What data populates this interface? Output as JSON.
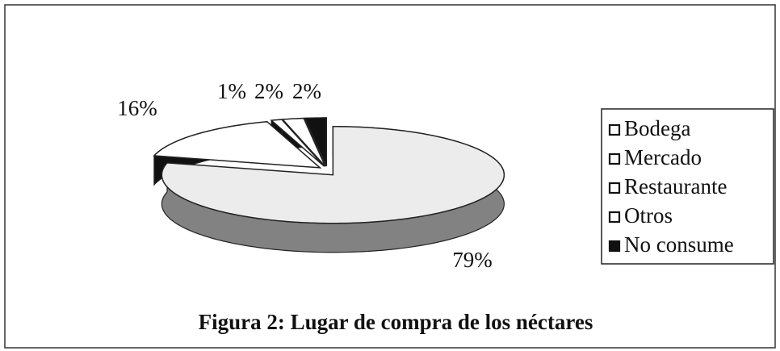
{
  "chart_data": {
    "type": "pie",
    "title": "Figura 2: Lugar de compra de los néctares",
    "categories": [
      "Bodega",
      "Mercado",
      "Restaurante",
      "Otros",
      "No consume"
    ],
    "values": [
      79,
      16,
      1,
      2,
      2
    ],
    "value_labels": [
      "79%",
      "16%",
      "1%",
      "2%",
      "2%"
    ],
    "colors": [
      "#ececec",
      "#ffffff",
      "#ffffff",
      "#ffffff",
      "#111111"
    ],
    "legend": "right"
  }
}
